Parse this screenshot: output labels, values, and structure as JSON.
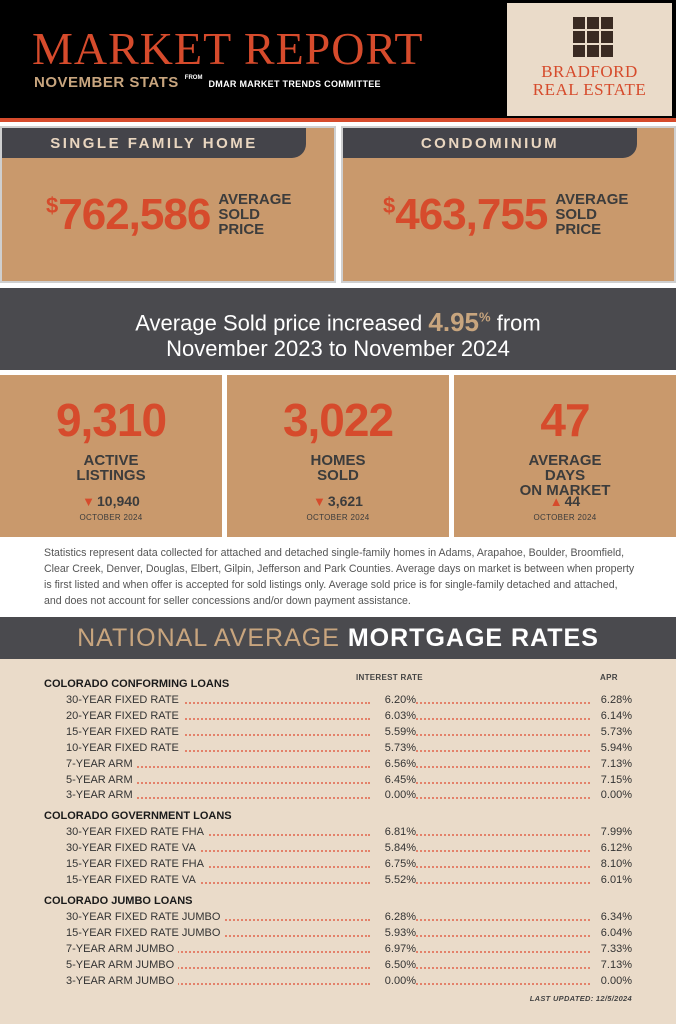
{
  "header": {
    "title": "MARKET REPORT",
    "subtitle": "NOVEMBER STATS",
    "from": "FROM",
    "committee": "DMAR MARKET TRENDS COMMITTEE",
    "logo_line1": "BRADFORD",
    "logo_line2": "REAL ESTATE"
  },
  "prices": [
    {
      "tab": "SINGLE FAMILY HOME",
      "symbol": "$",
      "value": "762,586",
      "label1": "AVERAGE",
      "label2": "SOLD",
      "label3": "PRICE"
    },
    {
      "tab": "CONDOMINIUM",
      "symbol": "$",
      "value": "463,755",
      "label1": "AVERAGE",
      "label2": "SOLD",
      "label3": "PRICE"
    }
  ],
  "banner": {
    "prefix": "Average Sold price increased",
    "pct": "4.95",
    "pct_sign": "%",
    "suffix": "from",
    "line2": "November 2023 to November 2024"
  },
  "stats": [
    {
      "value": "9,310",
      "label1": "ACTIVE",
      "label2": "LISTINGS",
      "label3": "",
      "arrow": "▼",
      "prev": "10,940",
      "date": "OCTOBER 2024"
    },
    {
      "value": "3,022",
      "label1": "HOMES",
      "label2": "SOLD",
      "label3": "",
      "arrow": "▼",
      "prev": "3,621",
      "date": "OCTOBER 2024"
    },
    {
      "value": "47",
      "label1": "AVERAGE",
      "label2": "DAYS",
      "label3": "ON MARKET",
      "arrow": "▲",
      "prev": "44",
      "date": "OCTOBER 2024"
    }
  ],
  "disclaimer": "Statistics represent data collected for attached and detached single-family homes in Adams, Arapahoe, Boulder, Broomfield, Clear Creek, Denver, Douglas, Elbert, Gilpin, Jefferson and Park Counties. Average days on market is between when property is first listed and when offer is accepted for sold listings only. Average sold price is for single-family detached and attached, and does not account for seller concessions and/or down payment assistance.",
  "mortgage": {
    "title_light": "NATIONAL AVERAGE",
    "title_bold": "MORTGAGE RATES",
    "col_rate": "INTEREST RATE",
    "col_apr": "APR",
    "sections": [
      {
        "title": "COLORADO CONFORMING LOANS",
        "rows": [
          {
            "name": "30-YEAR FIXED RATE",
            "rate": "6.20%",
            "apr": "6.28%"
          },
          {
            "name": "20-YEAR FIXED RATE",
            "rate": "6.03%",
            "apr": "6.14%"
          },
          {
            "name": "15-YEAR FIXED RATE",
            "rate": "5.59%",
            "apr": "5.73%"
          },
          {
            "name": "10-YEAR FIXED RATE",
            "rate": "5.73%",
            "apr": "5.94%"
          },
          {
            "name": "7-YEAR ARM",
            "rate": "6.56%",
            "apr": "7.13%"
          },
          {
            "name": "5-YEAR ARM",
            "rate": "6.45%",
            "apr": "7.15%"
          },
          {
            "name": "3-YEAR ARM",
            "rate": "0.00%",
            "apr": "0.00%"
          }
        ]
      },
      {
        "title": "COLORADO GOVERNMENT LOANS",
        "rows": [
          {
            "name": "30-YEAR FIXED RATE FHA",
            "rate": "6.81%",
            "apr": "7.99%"
          },
          {
            "name": "30-YEAR FIXED RATE VA",
            "rate": "5.84%",
            "apr": "6.12%"
          },
          {
            "name": "15-YEAR FIXED RATE FHA",
            "rate": "6.75%",
            "apr": "8.10%"
          },
          {
            "name": "15-YEAR FIXED RATE VA",
            "rate": "5.52%",
            "apr": "6.01%"
          }
        ]
      },
      {
        "title": "COLORADO JUMBO LOANS",
        "rows": [
          {
            "name": "30-YEAR FIXED RATE JUMBO",
            "rate": "6.28%",
            "apr": "6.34%"
          },
          {
            "name": "15-YEAR FIXED RATE JUMBO",
            "rate": "5.93%",
            "apr": "6.04%"
          },
          {
            "name": "7-YEAR ARM JUMBO",
            "rate": "6.97%",
            "apr": "7.33%"
          },
          {
            "name": "5-YEAR ARM JUMBO",
            "rate": "6.50%",
            "apr": "7.13%"
          },
          {
            "name": "3-YEAR ARM JUMBO",
            "rate": "0.00%",
            "apr": "0.00%"
          }
        ]
      }
    ],
    "updated": "LAST UPDATED: 12/5/2024"
  },
  "colors": {
    "accent_red": "#d64b2c",
    "tan": "#c9996c",
    "dark_gray": "#4a4a4e",
    "cream": "#eadbc9"
  }
}
